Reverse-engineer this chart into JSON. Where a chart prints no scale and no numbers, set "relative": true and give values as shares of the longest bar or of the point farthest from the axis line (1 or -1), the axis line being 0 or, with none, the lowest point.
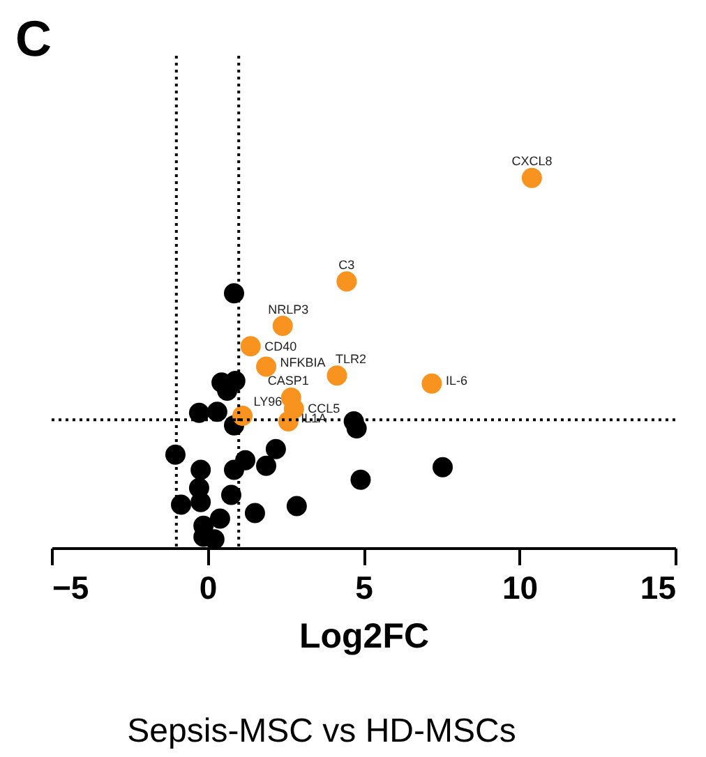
{
  "chart_data": {
    "type": "scatter",
    "title": "C",
    "xlabel": "Log2FC",
    "relative": true,
    "xlim": [
      -5,
      15
    ],
    "xticks": [
      -5,
      0,
      5,
      10,
      15
    ],
    "grid": false,
    "marker": "circle",
    "series": [
      {
        "color": "#000000",
        "x": [
          0.85,
          0.45,
          0.89,
          0.63,
          -0.27,
          0.31,
          0.85,
          4.69,
          4.78,
          2.19,
          -1.03,
          1.21,
          1.88,
          -0.22,
          0.85,
          -0.27,
          0.76,
          4.91,
          7.54,
          -0.85,
          -0.22,
          1.52,
          2.86,
          0.4,
          -0.13,
          0.22,
          -0.13
        ],
        "values": [
          0.688,
          0.447,
          0.451,
          0.425,
          0.365,
          0.368,
          0.331,
          0.342,
          0.323,
          0.267,
          0.252,
          0.237,
          0.222,
          0.211,
          0.211,
          0.162,
          0.143,
          0.184,
          0.218,
          0.117,
          0.124,
          0.094,
          0.113,
          0.079,
          0.06,
          0.023,
          0.03
        ]
      },
      {
        "color": "#f7931e",
        "x": [
          10.4,
          4.46,
          2.41,
          1.38,
          1.88,
          4.15,
          7.19,
          2.68,
          2.77,
          2.59,
          1.12
        ],
        "values": [
          1.0,
          0.72,
          0.6,
          0.545,
          0.49,
          0.466,
          0.444,
          0.406,
          0.376,
          0.342,
          0.357
        ]
      }
    ],
    "ref_lines": [
      {
        "axis": "x",
        "value": -1,
        "line_style": "dotted"
      },
      {
        "axis": "x",
        "value": 1,
        "line_style": "dotted"
      },
      {
        "axis": "y",
        "value": 0.346,
        "line_style": "dotted"
      }
    ],
    "annotations": [
      {
        "text": "CXCL8",
        "x": 10.4,
        "y": 1.0
      },
      {
        "text": "C3",
        "x": 4.46,
        "y": 0.72
      },
      {
        "text": "NRLP3",
        "x": 2.41,
        "y": 0.6
      },
      {
        "text": "CD40",
        "x": 1.38,
        "y": 0.545
      },
      {
        "text": "NFKBIA",
        "x": 1.88,
        "y": 0.49
      },
      {
        "text": "TLR2",
        "x": 4.15,
        "y": 0.466
      },
      {
        "text": "IL-6",
        "x": 7.19,
        "y": 0.444
      },
      {
        "text": "CASP1",
        "x": 2.68,
        "y": 0.406
      },
      {
        "text": "CCL5",
        "x": 2.77,
        "y": 0.376
      },
      {
        "text": "IL1A",
        "x": 2.59,
        "y": 0.342
      },
      {
        "text": "LY96",
        "x": 1.12,
        "y": 0.357
      },
      "Sepsis-MSC vs HD-MSCs"
    ]
  }
}
